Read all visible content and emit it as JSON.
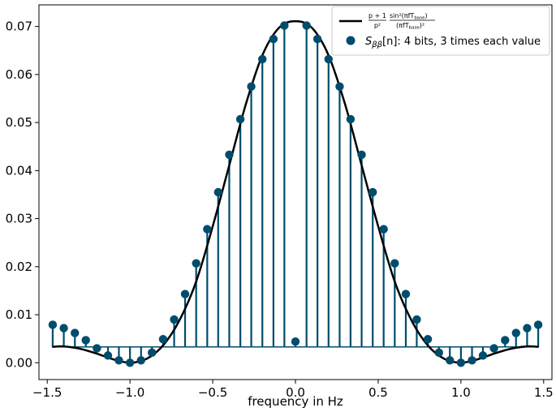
{
  "chart_data": {
    "type": "stem",
    "xlabel": "frequency in Hz",
    "ylabel": "",
    "xlim": [
      -1.55,
      1.55
    ],
    "ylim": [
      -0.0035,
      0.0745
    ],
    "x_ticks": [
      -1.5,
      -1.0,
      -0.5,
      0.0,
      0.5,
      1.0,
      1.5
    ],
    "x_tick_labels": [
      "−1.5",
      "−1.0",
      "−0.5",
      "0.0",
      "0.5",
      "1.0",
      "1.5"
    ],
    "y_ticks": [
      0.0,
      0.01,
      0.02,
      0.03,
      0.04,
      0.05,
      0.06,
      0.07
    ],
    "y_tick_labels": [
      "0.00",
      "0.01",
      "0.02",
      "0.03",
      "0.04",
      "0.05",
      "0.06",
      "0.07"
    ],
    "legend": {
      "placement": "top-right",
      "curve": {
        "numerator_left": "p + 1",
        "denominator_left": "p²",
        "numerator_right": "sin²(πfT",
        "numerator_right_sub": "base",
        "denominator_right": "(πfT",
        "denominator_right_sub": "base"
      },
      "stem_label_symbol": "S",
      "stem_label_sub": "ββ",
      "stem_label_arg": "[n]",
      "stem_label_text": ": 4 bits, 3 times each value"
    },
    "colors": {
      "curve": "#000000",
      "stem": "#004c6d",
      "marker": "#004c6d",
      "baseline": "#004c6d"
    },
    "series": [
      {
        "kind": "curve",
        "x": [
          -1.47,
          -1.4,
          -1.3,
          -1.2,
          -1.1,
          -1.0,
          -0.9,
          -0.8,
          -0.7,
          -0.6,
          -0.5,
          -0.4,
          -0.3,
          -0.2,
          -0.1,
          0.0,
          0.1,
          0.2,
          0.3,
          0.4,
          0.5,
          0.6,
          0.7,
          0.8,
          0.9,
          1.0,
          1.1,
          1.2,
          1.3,
          1.4,
          1.47
        ],
        "y": [
          0.0033,
          0.0034,
          0.0029,
          0.0019,
          0.0007,
          0.0,
          0.0008,
          0.0036,
          0.0089,
          0.0169,
          0.0284,
          0.0411,
          0.0538,
          0.064,
          0.0697,
          0.0711,
          0.0697,
          0.064,
          0.0538,
          0.0411,
          0.0284,
          0.0169,
          0.0089,
          0.0036,
          0.0008,
          0.0,
          0.0007,
          0.0019,
          0.0029,
          0.0034,
          0.0033
        ]
      },
      {
        "kind": "stem",
        "x": [
          -1.467,
          -1.4,
          -1.333,
          -1.267,
          -1.2,
          -1.133,
          -1.067,
          -1.0,
          -0.933,
          -0.867,
          -0.8,
          -0.733,
          -0.667,
          -0.6,
          -0.533,
          -0.467,
          -0.4,
          -0.333,
          -0.267,
          -0.2,
          -0.133,
          -0.067,
          0.0,
          0.067,
          0.133,
          0.2,
          0.267,
          0.333,
          0.4,
          0.467,
          0.533,
          0.6,
          0.667,
          0.733,
          0.8,
          0.867,
          0.933,
          1.0,
          1.067,
          1.133,
          1.2,
          1.267,
          1.333,
          1.4,
          1.467
        ],
        "y": [
          0.0079,
          0.0072,
          0.0062,
          0.0047,
          0.003,
          0.0015,
          0.0005,
          0.0,
          0.0005,
          0.0021,
          0.0049,
          0.009,
          0.0143,
          0.0207,
          0.0278,
          0.0355,
          0.0433,
          0.0507,
          0.0575,
          0.0632,
          0.0674,
          0.0702,
          0.0044,
          0.0702,
          0.0674,
          0.0632,
          0.0575,
          0.0507,
          0.0433,
          0.0355,
          0.0278,
          0.0207,
          0.0143,
          0.009,
          0.0049,
          0.0021,
          0.0005,
          0.0,
          0.0005,
          0.0015,
          0.003,
          0.0047,
          0.0062,
          0.0072,
          0.0079
        ],
        "baseline": 0.0033
      }
    ]
  }
}
